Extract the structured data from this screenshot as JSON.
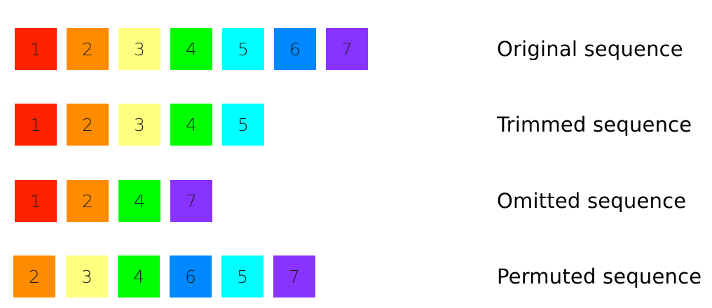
{
  "colors": {
    "1": "#ff2200",
    "2": "#ff8c00",
    "3": "#ffff80",
    "4": "#00ff00",
    "5": "#00ffff",
    "6": "#0088ff",
    "7": "#8833ff"
  },
  "rows": [
    {
      "label": "Original sequence",
      "items": [
        "1",
        "2",
        "3",
        "4",
        "5",
        "6",
        "7"
      ]
    },
    {
      "label": "Trimmed sequence",
      "items": [
        "1",
        "2",
        "3",
        "4",
        "5"
      ]
    },
    {
      "label": "Omitted sequence",
      "items": [
        "1",
        "2",
        "4",
        "7"
      ]
    },
    {
      "label": "Permuted sequence",
      "items": [
        "2",
        "3",
        "4",
        "6",
        "5",
        "7"
      ]
    }
  ]
}
